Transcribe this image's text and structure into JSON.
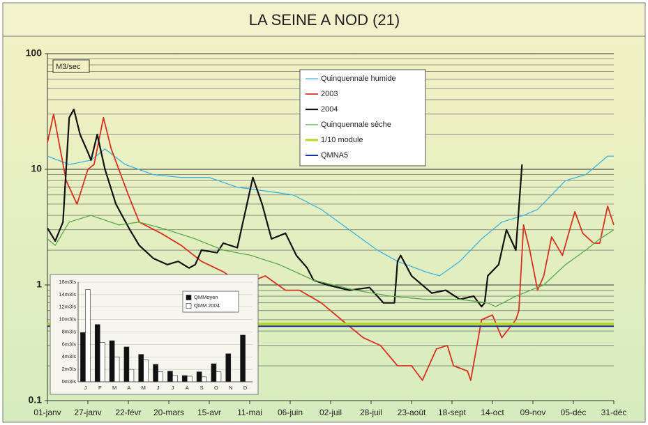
{
  "chart_data": [
    {
      "type": "line",
      "title": "LA SEINE A NOD (21)",
      "y_unit_label": "M3/sec",
      "log_scale_y": true,
      "ylim": [
        0.1,
        100
      ],
      "yticks": [
        0.1,
        1,
        10,
        100
      ],
      "minor_yticks": [
        0.2,
        0.3,
        0.4,
        0.5,
        0.6,
        0.7,
        0.8,
        0.9,
        2,
        3,
        4,
        5,
        6,
        7,
        8,
        9,
        20,
        30,
        40,
        50,
        60,
        70,
        80,
        90
      ],
      "grid": true,
      "legend": "top",
      "xlim": [
        1,
        365
      ],
      "xticks": [
        {
          "value": 1,
          "label": "01-janv"
        },
        {
          "value": 27,
          "label": "27-janv"
        },
        {
          "value": 53,
          "label": "22-févr"
        },
        {
          "value": 79,
          "label": "20-mars"
        },
        {
          "value": 105,
          "label": "15-avr"
        },
        {
          "value": 131,
          "label": "11-mai"
        },
        {
          "value": 157,
          "label": "06-juin"
        },
        {
          "value": 183,
          "label": "02-juil"
        },
        {
          "value": 209,
          "label": "28-juil"
        },
        {
          "value": 235,
          "label": "23-août"
        },
        {
          "value": 261,
          "label": "18-sept"
        },
        {
          "value": 287,
          "label": "14-oct"
        },
        {
          "value": 313,
          "label": "09-nov"
        },
        {
          "value": 339,
          "label": "05-déc"
        },
        {
          "value": 365,
          "label": "31-déc"
        }
      ],
      "series": [
        {
          "name": "Quinquennale humide",
          "color": "#3cb4e0",
          "width": 1.3,
          "x": [
            1,
            15,
            29,
            38,
            51,
            69,
            87,
            105,
            123,
            141,
            159,
            177,
            195,
            213,
            226,
            244,
            253,
            266,
            280,
            293,
            307,
            316,
            325,
            334,
            347,
            361,
            365
          ],
          "values": [
            13,
            11,
            12,
            15,
            11,
            9,
            8.5,
            8.5,
            7,
            6.5,
            6,
            4.5,
            3,
            2,
            1.6,
            1.3,
            1.2,
            1.6,
            2.5,
            3.5,
            4,
            4.5,
            6,
            8,
            9,
            13,
            13
          ]
        },
        {
          "name": "2003",
          "color": "#d83020",
          "width": 1.8,
          "x": [
            1,
            5,
            13,
            20,
            27,
            31,
            37,
            42,
            53,
            60,
            74,
            87,
            100,
            114,
            127,
            141,
            154,
            163,
            177,
            190,
            204,
            215,
            226,
            235,
            242,
            251,
            258,
            262,
            271,
            273,
            280,
            287,
            293,
            302,
            304,
            307,
            311,
            316,
            320,
            325,
            332,
            336,
            340,
            345,
            352,
            356,
            361,
            365
          ],
          "values": [
            17,
            30,
            8,
            5,
            10,
            11,
            28,
            15,
            6,
            3.5,
            2.8,
            2.2,
            1.6,
            1.3,
            1.0,
            1.2,
            0.9,
            0.9,
            0.7,
            0.5,
            0.35,
            0.3,
            0.2,
            0.2,
            0.15,
            0.28,
            0.3,
            0.2,
            0.18,
            0.15,
            0.5,
            0.55,
            0.35,
            0.5,
            0.6,
            3.3,
            2,
            0.9,
            1.2,
            2.6,
            1.8,
            2.8,
            4.3,
            2.8,
            2.3,
            2.3,
            4.8,
            3.3
          ]
        },
        {
          "name": "2004",
          "color": "#111111",
          "width": 2.2,
          "x": [
            1,
            6,
            11,
            15,
            18,
            22,
            27,
            29,
            33,
            38,
            45,
            54,
            60,
            69,
            78,
            85,
            92,
            96,
            100,
            110,
            114,
            123,
            133,
            139,
            145,
            154,
            161,
            168,
            172,
            181,
            195,
            208,
            217,
            224,
            226,
            228,
            235,
            248,
            257,
            266,
            275,
            280,
            282,
            284,
            291,
            296,
            302,
            306
          ],
          "values": [
            3.1,
            2.4,
            3.5,
            28,
            33,
            20,
            14,
            12,
            20,
            10,
            5,
            3,
            2.2,
            1.7,
            1.5,
            1.6,
            1.4,
            1.5,
            2.0,
            1.9,
            2.3,
            2.1,
            8.5,
            5,
            2.5,
            2.8,
            1.8,
            1.4,
            1.1,
            1.0,
            0.9,
            0.95,
            0.7,
            0.7,
            1.6,
            1.8,
            1.2,
            0.85,
            0.9,
            0.75,
            0.8,
            0.65,
            0.7,
            1.2,
            1.5,
            3.0,
            2.0,
            11
          ]
        },
        {
          "name": "Quinquennale sèche",
          "color": "#5aa850",
          "width": 1.3,
          "x": [
            1,
            6,
            15,
            29,
            47,
            60,
            78,
            96,
            114,
            132,
            150,
            172,
            199,
            222,
            244,
            266,
            284,
            289,
            302,
            320,
            334,
            347,
            356,
            365
          ],
          "values": [
            2.5,
            2.2,
            3.5,
            4,
            3.3,
            3.5,
            3,
            2.5,
            2,
            1.8,
            1.5,
            1.1,
            0.9,
            0.8,
            0.75,
            0.75,
            0.7,
            0.65,
            0.8,
            1.0,
            1.5,
            2,
            2.5,
            3
          ]
        },
        {
          "name": "1/10 module",
          "color": "#b8d820",
          "width": 4,
          "x": [
            1,
            365
          ],
          "values": [
            0.46,
            0.46
          ]
        },
        {
          "name": "QMNA5",
          "color": "#1830b0",
          "width": 2,
          "x": [
            1,
            365
          ],
          "values": [
            0.44,
            0.44
          ]
        }
      ]
    },
    {
      "type": "bar",
      "categories": [
        "J",
        "F",
        "M",
        "A",
        "M",
        "J",
        "J",
        "A",
        "S",
        "O",
        "N",
        "D"
      ],
      "ylim": [
        0,
        16
      ],
      "yticks": [
        {
          "value": 0,
          "label": "0m3/s"
        },
        {
          "value": 2,
          "label": "2m3/s"
        },
        {
          "value": 4,
          "label": "4m3/s"
        },
        {
          "value": 6,
          "label": "6m3/s"
        },
        {
          "value": 8,
          "label": "8m3/s"
        },
        {
          "value": 10,
          "label": "10m3/s"
        },
        {
          "value": 12,
          "label": "12m3/s"
        },
        {
          "value": 14,
          "label": "14m3/s"
        },
        {
          "value": 16,
          "label": "16m3/s"
        }
      ],
      "grid": true,
      "legend": "top-right",
      "series": [
        {
          "name": "QMMoyen",
          "color": "#111111",
          "values": [
            7.9,
            9.2,
            6.6,
            5.6,
            4.4,
            2.8,
            1.7,
            1.0,
            1.6,
            2.9,
            4.5,
            7.5
          ]
        },
        {
          "name": "QMM 2004",
          "color": "#ffffff",
          "values": [
            14.8,
            6.3,
            4.0,
            2.0,
            3.5,
            1.6,
            1.0,
            0.9,
            0.8,
            1.6,
            null,
            null
          ]
        }
      ]
    }
  ]
}
